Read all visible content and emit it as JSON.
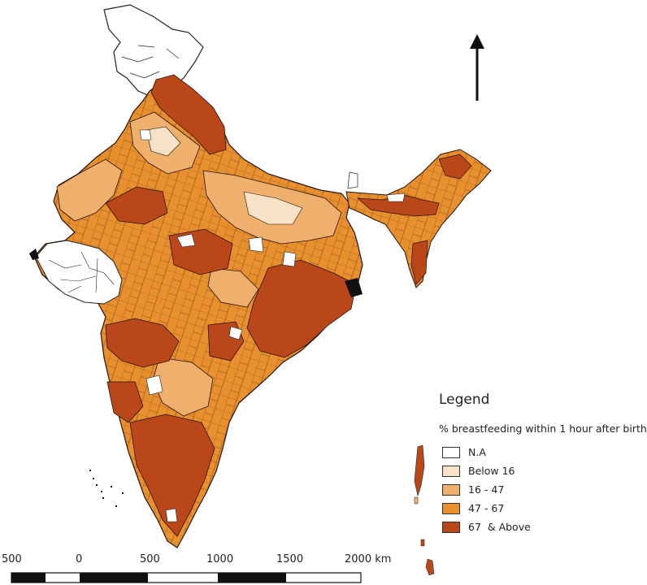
{
  "legend": {
    "title": "Legend",
    "subtitle": "% breastfeeding within 1 hour after birth",
    "items": [
      {
        "label": "N.A",
        "color": "#ffffff"
      },
      {
        "label": "Below 16",
        "color": "#f6e2c6"
      },
      {
        "label": "16 - 47",
        "color": "#f0b06d"
      },
      {
        "label": "47 - 67",
        "color": "#e88f2e"
      },
      {
        "label": "67  & Above",
        "color": "#b9471a"
      }
    ]
  },
  "scale_bar": {
    "labels": [
      "500",
      "0",
      "500",
      "1000",
      "1500",
      "2000 km"
    ]
  },
  "north_arrow": {
    "icon": "north-arrow-icon"
  }
}
